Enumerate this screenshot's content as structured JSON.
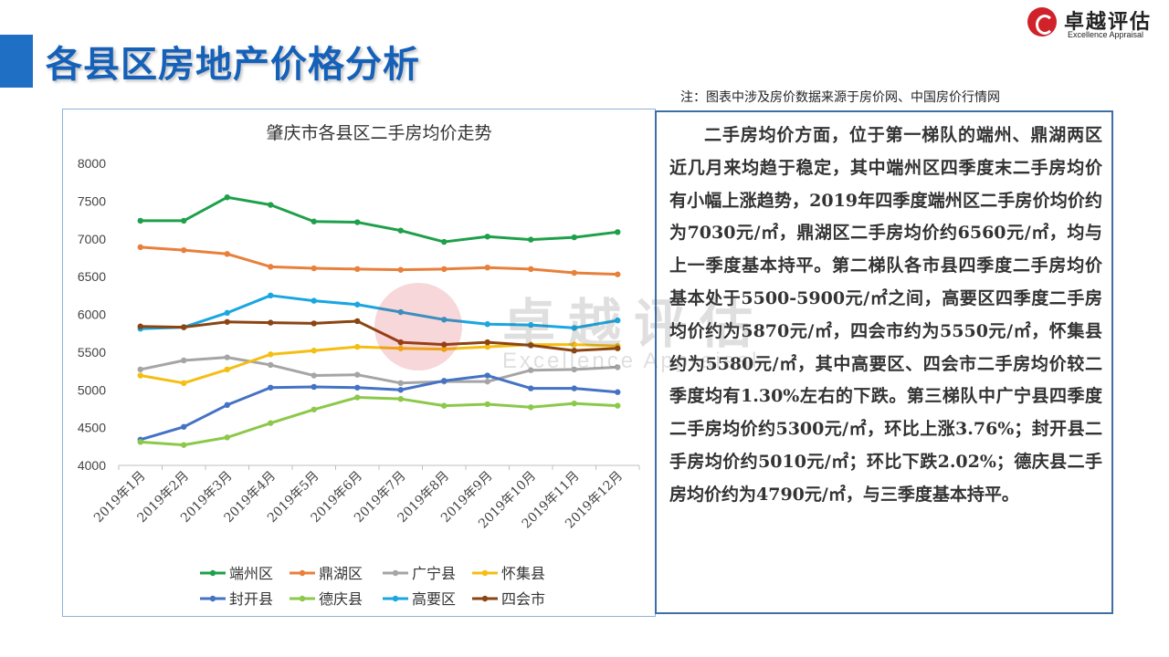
{
  "header": {
    "title": "各县区房地产价格分析",
    "logo_cn": "卓越评估",
    "logo_en": "Excellence Appraisal",
    "note": "注：图表中涉及房价数据来源于房价网、中国房价行情网"
  },
  "colors": {
    "accent": "#1f6fc5",
    "title": "#1560b8",
    "brand_red": "#d0222a"
  },
  "chart_data": {
    "type": "line",
    "title": "肇庆市各县区二手房均价走势",
    "categories": [
      "2019年1月",
      "2019年2月",
      "2019年3月",
      "2019年4月",
      "2019年5月",
      "2019年6月",
      "2019年7月",
      "2019年8月",
      "2019年9月",
      "2019年10月",
      "2019年11月",
      "2019年12月"
    ],
    "ylim": [
      4000,
      8000
    ],
    "yticks": [
      4000,
      4500,
      5000,
      5500,
      6000,
      6500,
      7000,
      7500,
      8000
    ],
    "grid": false,
    "legend": "bottom",
    "series": [
      {
        "name": "端州区",
        "color": "#1ea04a",
        "values": [
          7240,
          7240,
          7550,
          7450,
          7230,
          7220,
          7110,
          6960,
          7030,
          6990,
          7020,
          7090
        ]
      },
      {
        "name": "鼎湖区",
        "color": "#e8803c",
        "values": [
          6890,
          6850,
          6800,
          6630,
          6610,
          6600,
          6590,
          6600,
          6620,
          6600,
          6550,
          6530
        ]
      },
      {
        "name": "广宁县",
        "color": "#a5a5a5",
        "values": [
          5270,
          5390,
          5430,
          5330,
          5190,
          5200,
          5090,
          5110,
          5110,
          5260,
          5270,
          5300
        ]
      },
      {
        "name": "怀集县",
        "color": "#f5be12",
        "values": [
          5190,
          5090,
          5270,
          5470,
          5520,
          5570,
          5550,
          5540,
          5570,
          5600,
          5600,
          5580
        ]
      },
      {
        "name": "封开县",
        "color": "#4472c4",
        "values": [
          4340,
          4510,
          4800,
          5030,
          5040,
          5030,
          5000,
          5120,
          5190,
          5020,
          5020,
          4970
        ]
      },
      {
        "name": "德庆县",
        "color": "#8cc84a",
        "values": [
          4310,
          4270,
          4370,
          4560,
          4740,
          4900,
          4880,
          4790,
          4810,
          4770,
          4820,
          4790
        ]
      },
      {
        "name": "高要区",
        "color": "#1aa6e0",
        "values": [
          5810,
          5830,
          6020,
          6250,
          6180,
          6130,
          6030,
          5930,
          5870,
          5860,
          5820,
          5920
        ]
      },
      {
        "name": "四会市",
        "color": "#8b4513",
        "values": [
          5840,
          5830,
          5900,
          5890,
          5880,
          5910,
          5630,
          5600,
          5630,
          5590,
          5520,
          5550
        ]
      }
    ]
  },
  "analysis": {
    "paragraph": "二手房均价方面，位于第一梯队的端州、鼎湖两区近几月来均趋于稳定，其中端州区四季度末二手房均价有小幅上涨趋势，2019年四季度端州区二手房价均价约为7030元/㎡，鼎湖区二手房均价约6560元/㎡，均与上一季度基本持平。第二梯队各市县四季度二手房均价基本处于5500-5900元/㎡之间，高要区四季度二手房均价约为5870元/㎡，四会市约为5550元/㎡，怀集县约为5580元/㎡，其中高要区、四会市二手房均价较二季度均有1.30%左右的下跌。第三梯队中广宁县四季度二手房均价约5300元/㎡，环比上涨3.76%；封开县二手房均价约5010元/㎡；环比下跌2.02%；德庆县二手房均价约为4790元/㎡，与三季度基本持平。"
  },
  "watermark": {
    "cn": "卓越评估",
    "en": "Excellence Appraisal"
  }
}
